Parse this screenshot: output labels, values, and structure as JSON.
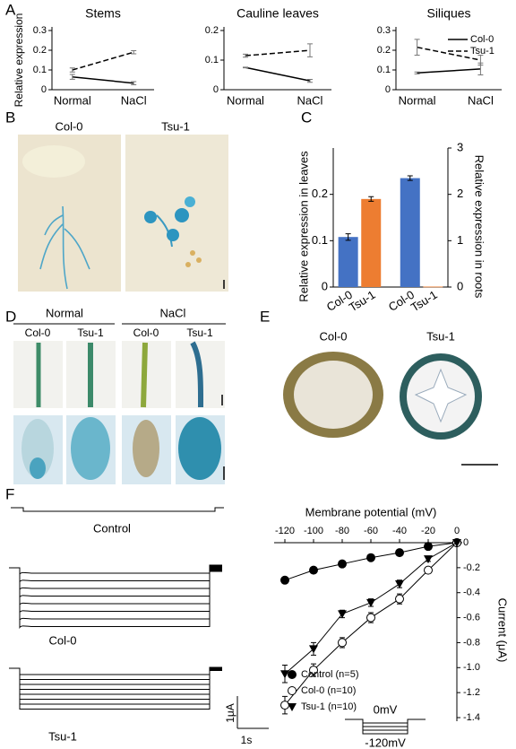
{
  "panel_labels": [
    "A",
    "B",
    "C",
    "D",
    "E",
    "F"
  ],
  "chart_data": [
    {
      "type": "line",
      "title": "Stems",
      "y_label": "Relative expression",
      "categories": [
        "Normal",
        "NaCl"
      ],
      "ylim": [
        0,
        0.3
      ],
      "yticks": [
        0,
        0.1,
        0.2,
        0.3
      ],
      "series": [
        {
          "name": "Col-0",
          "color": "#000000",
          "dash": false,
          "values": [
            0.065,
            0.033
          ],
          "errors": [
            0.012,
            0.008
          ]
        },
        {
          "name": "Tsu-1",
          "color": "#000000",
          "dash": true,
          "values": [
            0.1,
            0.19
          ],
          "errors": [
            0.01,
            0.008
          ]
        }
      ]
    },
    {
      "type": "line",
      "title": "Cauline leaves",
      "categories": [
        "Normal",
        "NaCl"
      ],
      "ylim": [
        0,
        0.2
      ],
      "yticks": [
        0,
        0.1,
        0.2
      ],
      "series": [
        {
          "name": "Col-0",
          "color": "#000000",
          "dash": false,
          "values": [
            0.075,
            0.03
          ],
          "errors": [
            0.001,
            0.005
          ]
        },
        {
          "name": "Tsu-1",
          "color": "#000000",
          "dash": true,
          "values": [
            0.115,
            0.133
          ],
          "errors": [
            0.005,
            0.022
          ]
        }
      ]
    },
    {
      "type": "line",
      "title": "Siliques",
      "categories": [
        "Normal",
        "NaCl"
      ],
      "legend": "upper right",
      "ylim": [
        0,
        0.3
      ],
      "yticks": [
        0,
        0.1,
        0.2,
        0.3
      ],
      "series": [
        {
          "name": "Col-0",
          "color": "#000000",
          "dash": false,
          "values": [
            0.085,
            0.105
          ],
          "errors": [
            0.005,
            0.03
          ]
        },
        {
          "name": "Tsu-1",
          "color": "#000000",
          "dash": true,
          "values": [
            0.215,
            0.15
          ],
          "errors": [
            0.04,
            0.025
          ]
        }
      ]
    },
    {
      "type": "bar",
      "y_label": "Relative expression in leaves",
      "y2_label": "Relative expression in roots",
      "categories": [
        "Col-0",
        "Tsu-1",
        "Col-0",
        "Tsu-1"
      ],
      "colors": [
        "#4472c4",
        "#ed7d31",
        "#4472c4",
        "#ed7d31"
      ],
      "ylim": [
        0,
        0.3
      ],
      "yticks": [
        0,
        0.1,
        0.2
      ],
      "y2lim": [
        0,
        3
      ],
      "y2ticks": [
        0,
        1,
        2,
        3
      ],
      "series": [
        {
          "values": [
            0.108,
            0.19,
            null,
            null
          ],
          "errors": [
            0.007,
            0.005,
            null,
            null
          ]
        },
        {
          "axis": "y2",
          "values": [
            null,
            null,
            2.35,
            0.01
          ],
          "errors": [
            null,
            null,
            0.05,
            null
          ]
        }
      ]
    },
    {
      "type": "line",
      "x_label": "Membrane potential (mV)",
      "y_label": "Current (μA)",
      "legend": "lower left",
      "x": [
        -120,
        -100,
        -80,
        -60,
        -40,
        -20,
        0
      ],
      "xlim": [
        -120,
        0
      ],
      "xticks": [
        -120,
        -100,
        -80,
        -60,
        -40,
        -20,
        0
      ],
      "ylim": [
        -1.4,
        0
      ],
      "yticks": [
        0,
        -0.2,
        -0.4,
        -0.6,
        -0.8,
        {
          "value": -1,
          "label": "-1.0"
        },
        -1.2,
        -1.4
      ],
      "series": [
        {
          "name": "Control (n=5)",
          "color": "#000000",
          "marker": "filled-circle",
          "values": [
            -0.3,
            -0.22,
            -0.17,
            -0.12,
            -0.08,
            -0.03,
            0
          ],
          "errors": [
            0.02,
            0.015,
            0.01,
            0.01,
            0.01,
            0.01,
            0
          ]
        },
        {
          "name": "Col-0 (n=10)",
          "color": "#000000",
          "marker": "open-circle",
          "values": [
            -1.3,
            -1.02,
            -0.8,
            -0.6,
            -0.45,
            -0.22,
            0
          ],
          "errors": [
            0.07,
            0.05,
            0.04,
            0.04,
            0.04,
            0.02,
            0
          ]
        },
        {
          "name": "Tsu-1 (n=10)",
          "color": "#000000",
          "marker": "filled-triangle-down",
          "values": [
            -1.05,
            -0.85,
            -0.57,
            -0.48,
            -0.33,
            -0.13,
            0
          ],
          "errors": [
            0.07,
            0.05,
            0.03,
            0.03,
            0.03,
            0.02,
            0
          ]
        }
      ]
    }
  ],
  "photos": {
    "b": [
      "Col-0",
      "Tsu-1"
    ],
    "d": {
      "headers": [
        "Normal",
        "NaCl"
      ],
      "columns": [
        "Col-0",
        "Tsu-1",
        "Col-0",
        "Tsu-1"
      ]
    },
    "e": [
      "Col-0",
      "Tsu-1"
    ]
  },
  "traces": {
    "labels": [
      "Control",
      "Col-0",
      "Tsu-1"
    ],
    "current_scale": "1μA",
    "time_scale": "1s",
    "holding": "0mV",
    "step": "-120mV"
  }
}
